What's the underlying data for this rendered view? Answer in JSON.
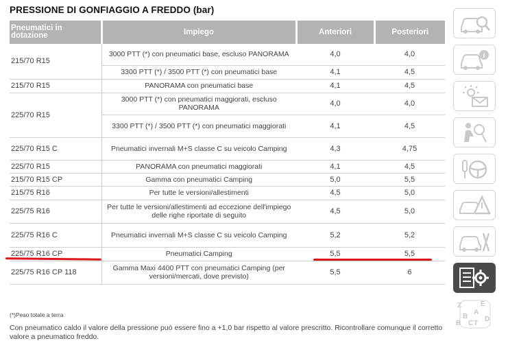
{
  "title": "PRESSIONE DI GONFIAGGIO A FREDDO (bar)",
  "headers": {
    "tyres": "Pneumatici in dotazione",
    "use": "Impiego",
    "front": "Anteriori",
    "rear": "Posteriori"
  },
  "rows": [
    {
      "tyre": "215/70 R15",
      "use": "3000 PTT (*) con pneumatici base, escluso PANORAMA",
      "front": "4,0",
      "rear": "4,0"
    },
    {
      "tyre": "",
      "use": "3300 PTT (*) / 3500 PTT (*) con pneumatici base",
      "front": "4,1",
      "rear": "4,5"
    },
    {
      "tyre": "215/70 R15",
      "use": "PANORAMA con pneumatici base",
      "front": "4,1",
      "rear": "4,5"
    },
    {
      "tyre": "225/70 R15",
      "use": "3000 PTT (*) con pneumatici maggiorati, escluso PANORAMA",
      "front": "4,0",
      "rear": "4,0"
    },
    {
      "tyre": "",
      "use": "3300 PTT (*) / 3500 PTT (*) con pneumatici maggiorati",
      "front": "4,1",
      "rear": "4,5"
    },
    {
      "tyre": "225/70 R15 C",
      "use": "Pneumatici invernali M+S classe C su veicolo Camping",
      "front": "4,3",
      "rear": "4,75"
    },
    {
      "tyre": "225/70 R15",
      "use": "PANORAMA con pneumatici maggiorati",
      "front": "4,1",
      "rear": "4,5"
    },
    {
      "tyre": "215/70 R15 CP",
      "use": "Gamma con pneumatici Camping",
      "front": "5,0",
      "rear": "5,5"
    },
    {
      "tyre": "215/75 R16",
      "use": "Per tutte le versioni/allestimenti",
      "front": "4,5",
      "rear": "5,0"
    },
    {
      "tyre": "225/75 R16",
      "use": "Per tutte le versioni/allestimenti ad eccezione dell'impiego delle righe riportate di seguito",
      "front": "4,5",
      "rear": "5,0"
    },
    {
      "tyre": "225/75 R16 C",
      "use": "Pneumatici invernali M+S classe C su veicolo Camping",
      "front": "5,2",
      "rear": "5,2"
    },
    {
      "tyre": "225/75 R16 CP",
      "use": "Pneumatici Camping",
      "front": "5,5",
      "rear": "5,5"
    },
    {
      "tyre": "225/75 R16 CP 118",
      "use": "Gamma Maxi 4400 PTT con pneumatici Camping (per versioni/mercati, dove previsto)",
      "front": "5,5",
      "rear": "6"
    }
  ],
  "footnote": "(*)Peso totale a terra",
  "note": "Con pneumatico caldo il valore della pressione può essere fino a +1,0 bar rispetto al valore prescritto. Ricontrollare comunque il corretto valore a pneumatico freddo.",
  "sidebar": {
    "icons": [
      "car-search-icon",
      "car-info-icon",
      "warning-lights-icon",
      "airbag-safety-icon",
      "steering-key-icon",
      "car-warning-triangle-icon",
      "car-tools-icon",
      "specifications-gear-icon",
      "alphabet-index-icon"
    ],
    "alpha_letters": [
      "Z",
      "B",
      "E",
      "A",
      "B",
      "C",
      "T",
      "D"
    ]
  },
  "colors": {
    "header_bg": "#b3b3b3",
    "highlight_red": "#e0141c",
    "active_tab": "#4a4a4a"
  }
}
